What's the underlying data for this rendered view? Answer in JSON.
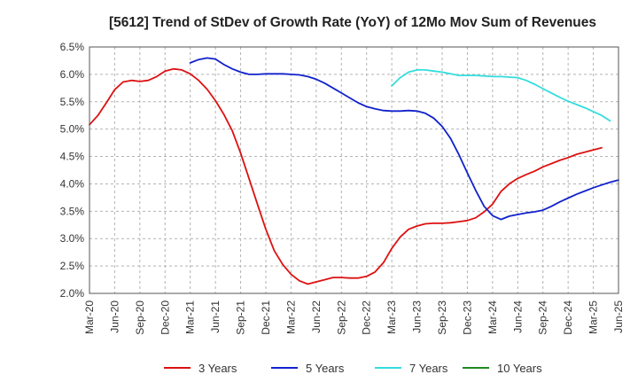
{
  "chart_data": {
    "type": "line",
    "title": "[5612]  Trend of StDev of Growth Rate (YoY) of 12Mo Mov Sum of Revenues",
    "xlabel": "",
    "ylabel": "",
    "ylim": [
      0.02,
      0.065
    ],
    "y_ticks": [
      0.02,
      0.025,
      0.03,
      0.035,
      0.04,
      0.045,
      0.05,
      0.055,
      0.06,
      0.065
    ],
    "y_tick_labels": [
      "2.0%",
      "2.5%",
      "3.0%",
      "3.5%",
      "4.0%",
      "4.5%",
      "5.0%",
      "5.5%",
      "6.0%",
      "6.5%"
    ],
    "x_ticks": [
      "Mar-20",
      "Jun-20",
      "Sep-20",
      "Dec-20",
      "Mar-21",
      "Jun-21",
      "Sep-21",
      "Dec-21",
      "Mar-22",
      "Jun-22",
      "Sep-22",
      "Dec-22",
      "Mar-23",
      "Jun-23",
      "Sep-23",
      "Dec-23",
      "Mar-24",
      "Jun-24",
      "Sep-24",
      "Dec-24",
      "Mar-25",
      "Jun-25"
    ],
    "x_index_range": [
      0,
      63
    ],
    "grid": true,
    "legend_position": "bottom",
    "series": [
      {
        "name": "3 Years",
        "color": "#dd1111",
        "start_index": 0,
        "values": [
          0.0508,
          0.0525,
          0.0548,
          0.0572,
          0.0586,
          0.0589,
          0.0587,
          0.0589,
          0.0596,
          0.0606,
          0.061,
          0.0608,
          0.0601,
          0.0589,
          0.0573,
          0.0552,
          0.0527,
          0.0497,
          0.0456,
          0.041,
          0.0363,
          0.0317,
          0.0278,
          0.0253,
          0.0235,
          0.0223,
          0.0217,
          0.0221,
          0.0225,
          0.0229,
          0.0229,
          0.0228,
          0.0228,
          0.0231,
          0.0239,
          0.0256,
          0.0282,
          0.0303,
          0.0317,
          0.0323,
          0.0327,
          0.0328,
          0.0328,
          0.0329,
          0.0331,
          0.0333,
          0.0338,
          0.0349,
          0.0363,
          0.0386,
          0.04,
          0.041,
          0.0417,
          0.0423,
          0.0431,
          0.0437,
          0.0443,
          0.0448,
          0.0454,
          0.0458,
          0.0462,
          0.0466
        ]
      },
      {
        "name": "5 Years",
        "color": "#1122cc",
        "start_index": 12,
        "values": [
          0.0621,
          0.0627,
          0.063,
          0.0628,
          0.0618,
          0.061,
          0.0604,
          0.06,
          0.06,
          0.0601,
          0.0601,
          0.0601,
          0.06,
          0.0599,
          0.0596,
          0.0591,
          0.0584,
          0.0575,
          0.0566,
          0.0557,
          0.0548,
          0.0541,
          0.0537,
          0.0534,
          0.0533,
          0.0533,
          0.0534,
          0.0533,
          0.0529,
          0.052,
          0.0505,
          0.0483,
          0.0453,
          0.042,
          0.0388,
          0.0359,
          0.0342,
          0.0335,
          0.0341,
          0.0344,
          0.0347,
          0.0349,
          0.0352,
          0.0359,
          0.0367,
          0.0374,
          0.0381,
          0.0387,
          0.0393,
          0.0398,
          0.0403,
          0.0407
        ]
      },
      {
        "name": "7 Years",
        "color": "#33dddd",
        "start_index": 36,
        "values": [
          0.0579,
          0.0594,
          0.0604,
          0.0608,
          0.0608,
          0.0606,
          0.0604,
          0.0601,
          0.0598,
          0.0598,
          0.0598,
          0.0597,
          0.0596,
          0.0596,
          0.0595,
          0.0594,
          0.0589,
          0.0582,
          0.0574,
          0.0566,
          0.0558,
          0.0551,
          0.0545,
          0.0539,
          0.0532,
          0.0525,
          0.0515
        ]
      },
      {
        "name": "10 Years",
        "color": "#228822",
        "start_index": 0,
        "values": []
      }
    ]
  }
}
